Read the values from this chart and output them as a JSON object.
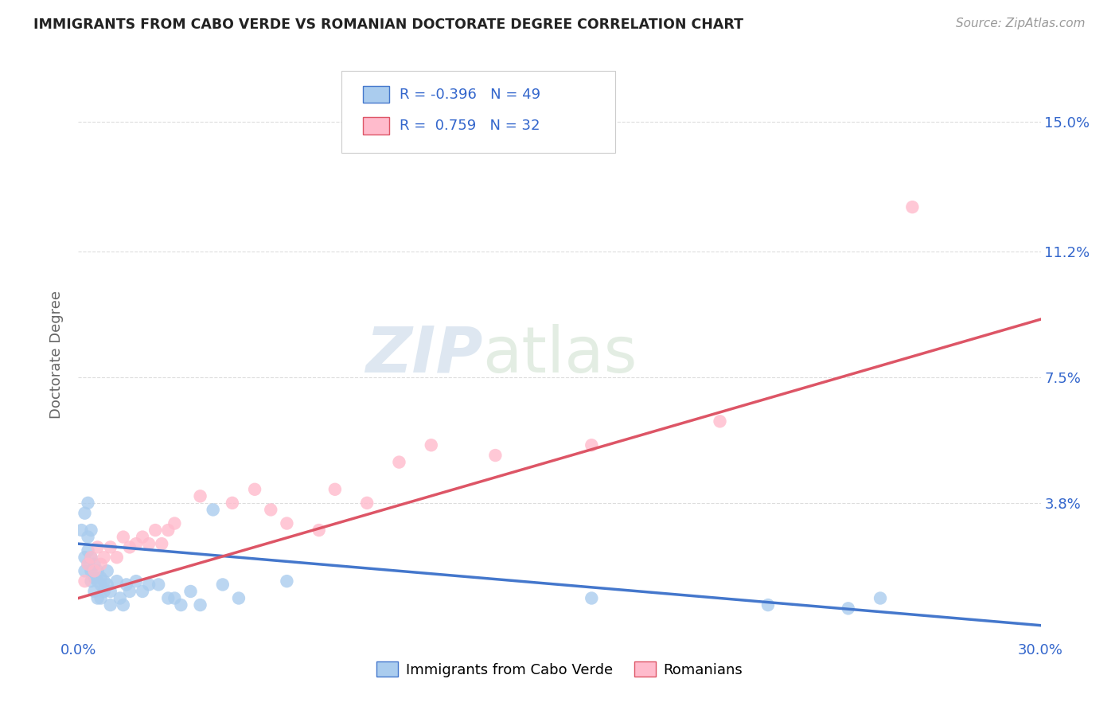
{
  "title": "IMMIGRANTS FROM CABO VERDE VS ROMANIAN DOCTORATE DEGREE CORRELATION CHART",
  "source": "Source: ZipAtlas.com",
  "xlabel": "",
  "ylabel": "Doctorate Degree",
  "xlim": [
    0.0,
    0.3
  ],
  "ylim": [
    -0.002,
    0.165
  ],
  "ytick_labels": [
    "",
    "3.8%",
    "7.5%",
    "11.2%",
    "15.0%"
  ],
  "ytick_values": [
    0.0,
    0.038,
    0.075,
    0.112,
    0.15
  ],
  "xtick_labels": [
    "0.0%",
    "",
    "",
    "",
    "",
    "",
    "30.0%"
  ],
  "xtick_values": [
    0.0,
    0.05,
    0.1,
    0.15,
    0.2,
    0.25,
    0.3
  ],
  "grid_color": "#dddddd",
  "background_color": "#ffffff",
  "cabo_verde_color": "#aaccee",
  "romanians_color": "#ffbbcc",
  "cabo_verde_line_color": "#4477cc",
  "romanians_line_color": "#dd5566",
  "cabo_verde_R": -0.396,
  "cabo_verde_N": 49,
  "romanians_R": 0.759,
  "romanians_N": 32,
  "cabo_verde_points": [
    [
      0.001,
      0.03
    ],
    [
      0.002,
      0.022
    ],
    [
      0.002,
      0.018
    ],
    [
      0.003,
      0.028
    ],
    [
      0.003,
      0.024
    ],
    [
      0.003,
      0.02
    ],
    [
      0.004,
      0.022
    ],
    [
      0.004,
      0.018
    ],
    [
      0.004,
      0.015
    ],
    [
      0.005,
      0.02
    ],
    [
      0.005,
      0.016
    ],
    [
      0.005,
      0.012
    ],
    [
      0.006,
      0.018
    ],
    [
      0.006,
      0.015
    ],
    [
      0.006,
      0.01
    ],
    [
      0.007,
      0.016
    ],
    [
      0.007,
      0.014
    ],
    [
      0.007,
      0.01
    ],
    [
      0.008,
      0.015
    ],
    [
      0.008,
      0.012
    ],
    [
      0.009,
      0.018
    ],
    [
      0.009,
      0.014
    ],
    [
      0.01,
      0.012
    ],
    [
      0.01,
      0.008
    ],
    [
      0.012,
      0.015
    ],
    [
      0.013,
      0.01
    ],
    [
      0.014,
      0.008
    ],
    [
      0.015,
      0.014
    ],
    [
      0.016,
      0.012
    ],
    [
      0.018,
      0.015
    ],
    [
      0.02,
      0.012
    ],
    [
      0.022,
      0.014
    ],
    [
      0.025,
      0.014
    ],
    [
      0.028,
      0.01
    ],
    [
      0.03,
      0.01
    ],
    [
      0.032,
      0.008
    ],
    [
      0.035,
      0.012
    ],
    [
      0.038,
      0.008
    ],
    [
      0.042,
      0.036
    ],
    [
      0.045,
      0.014
    ],
    [
      0.05,
      0.01
    ],
    [
      0.065,
      0.015
    ],
    [
      0.16,
      0.01
    ],
    [
      0.003,
      0.038
    ],
    [
      0.002,
      0.035
    ],
    [
      0.004,
      0.03
    ],
    [
      0.215,
      0.008
    ],
    [
      0.24,
      0.007
    ],
    [
      0.25,
      0.01
    ]
  ],
  "romanians_points": [
    [
      0.002,
      0.015
    ],
    [
      0.003,
      0.02
    ],
    [
      0.004,
      0.022
    ],
    [
      0.005,
      0.018
    ],
    [
      0.006,
      0.025
    ],
    [
      0.007,
      0.02
    ],
    [
      0.008,
      0.022
    ],
    [
      0.01,
      0.025
    ],
    [
      0.012,
      0.022
    ],
    [
      0.014,
      0.028
    ],
    [
      0.016,
      0.025
    ],
    [
      0.018,
      0.026
    ],
    [
      0.02,
      0.028
    ],
    [
      0.022,
      0.026
    ],
    [
      0.024,
      0.03
    ],
    [
      0.026,
      0.026
    ],
    [
      0.028,
      0.03
    ],
    [
      0.03,
      0.032
    ],
    [
      0.038,
      0.04
    ],
    [
      0.048,
      0.038
    ],
    [
      0.055,
      0.042
    ],
    [
      0.06,
      0.036
    ],
    [
      0.065,
      0.032
    ],
    [
      0.075,
      0.03
    ],
    [
      0.08,
      0.042
    ],
    [
      0.09,
      0.038
    ],
    [
      0.1,
      0.05
    ],
    [
      0.11,
      0.055
    ],
    [
      0.13,
      0.052
    ],
    [
      0.16,
      0.055
    ],
    [
      0.2,
      0.062
    ],
    [
      0.26,
      0.125
    ]
  ],
  "cabo_verde_line": [
    [
      0.0,
      0.026
    ],
    [
      0.3,
      0.002
    ]
  ],
  "romanians_line": [
    [
      0.0,
      0.01
    ],
    [
      0.3,
      0.092
    ]
  ]
}
